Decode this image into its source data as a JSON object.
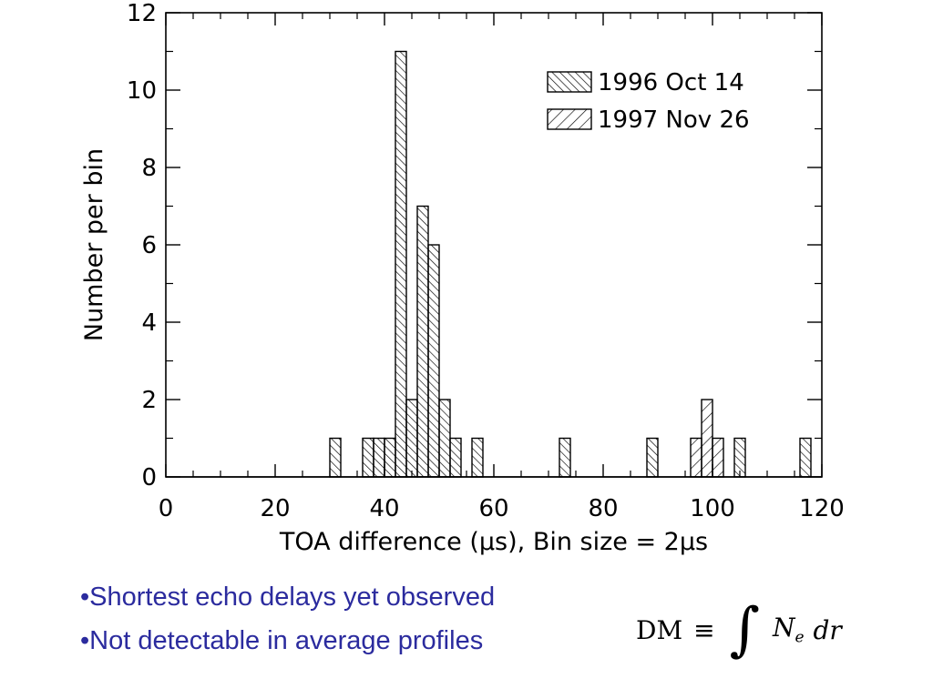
{
  "chart_data": {
    "type": "bar",
    "style": "step histogram, hatched fills",
    "xlabel": "TOA difference (μs), Bin size = 2μs",
    "ylabel": "Number per bin",
    "xlim": [
      0,
      120
    ],
    "ylim": [
      0,
      12
    ],
    "x_ticks": [
      0,
      20,
      40,
      60,
      80,
      100,
      120
    ],
    "y_ticks": [
      0,
      2,
      4,
      6,
      8,
      10,
      12
    ],
    "bin_size": 2,
    "legend_position": "top-right",
    "series": [
      {
        "name": "1996 Oct 14",
        "hatch": "dense-backslash",
        "bins": [
          {
            "x": 30,
            "count": 1
          },
          {
            "x": 36,
            "count": 1
          },
          {
            "x": 38,
            "count": 1
          },
          {
            "x": 40,
            "count": 1
          },
          {
            "x": 42,
            "count": 11
          },
          {
            "x": 44,
            "count": 2
          },
          {
            "x": 46,
            "count": 7
          },
          {
            "x": 48,
            "count": 6
          },
          {
            "x": 50,
            "count": 2
          },
          {
            "x": 52,
            "count": 1
          },
          {
            "x": 56,
            "count": 1
          },
          {
            "x": 72,
            "count": 1
          },
          {
            "x": 88,
            "count": 1
          },
          {
            "x": 104,
            "count": 1
          },
          {
            "x": 116,
            "count": 1
          }
        ]
      },
      {
        "name": "1997 Nov 26",
        "hatch": "sparse-slash",
        "bins": [
          {
            "x": 96,
            "count": 1
          },
          {
            "x": 98,
            "count": 2
          },
          {
            "x": 100,
            "count": 1
          }
        ]
      }
    ]
  },
  "text": {
    "bullet1": "•Shortest echo delays yet observed",
    "bullet2": "•Not detectable in average profiles",
    "formula": {
      "dm": "DM",
      "equiv": "≡",
      "integral": "∫",
      "ne_base": "N",
      "ne_sub": "e",
      "dr": "dr"
    }
  }
}
